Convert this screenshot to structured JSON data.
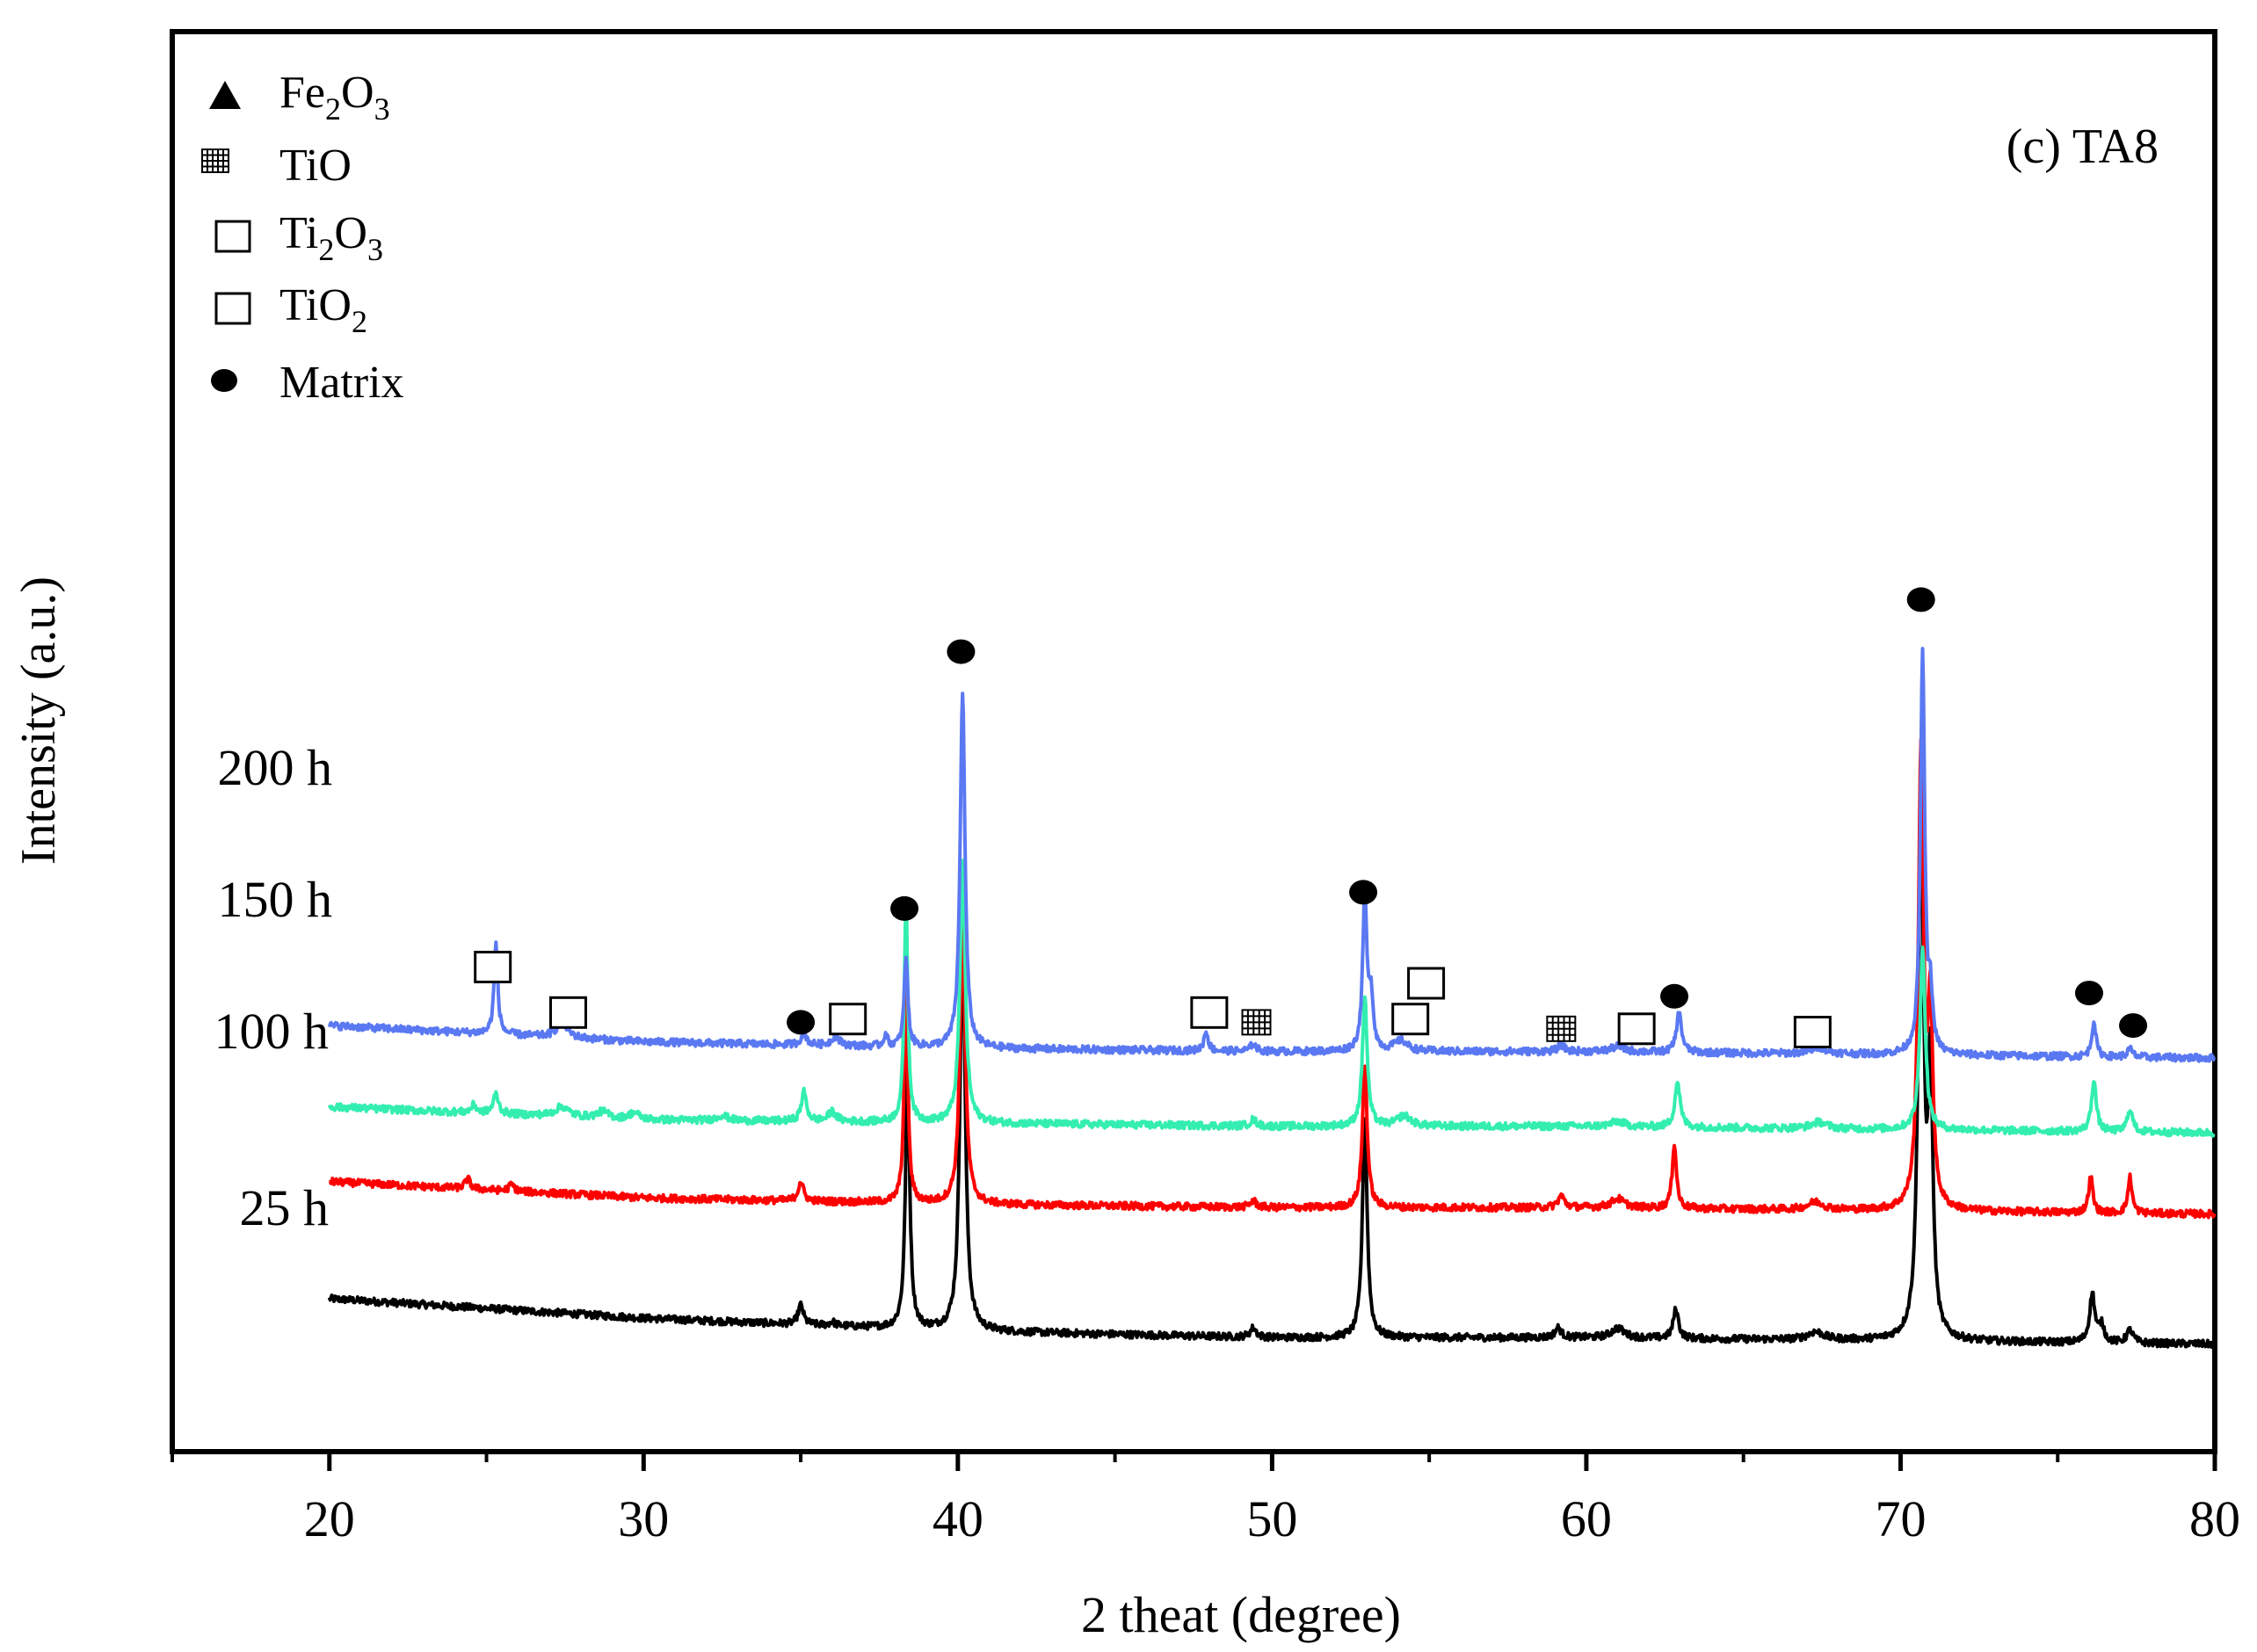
{
  "chart_data": {
    "type": "line",
    "panel_label": "(c) TA8",
    "xlabel": "2 theat (degree)",
    "ylabel": "Intensity (a.u.)",
    "xlim": [
      15,
      80
    ],
    "x_ticks": [
      20,
      30,
      40,
      50,
      60,
      70,
      80
    ],
    "x_tick_labels": [
      "20",
      "30",
      "40",
      "50",
      "60",
      "70",
      "80"
    ],
    "x_minor_ticks": [
      15,
      25,
      35,
      45,
      55,
      65,
      75
    ],
    "ylim": [
      0,
      100
    ],
    "y_ticks_shown": false,
    "legend": [
      {
        "marker": "triangle",
        "label_main": "Fe",
        "sub1": "2",
        "mid": "O",
        "sub2": "3"
      },
      {
        "marker": "grid-square",
        "label_main": "TiO",
        "sub1": "",
        "mid": "",
        "sub2": ""
      },
      {
        "marker": "open-square",
        "label_main": "Ti",
        "sub1": "2",
        "mid": "O",
        "sub2": "3"
      },
      {
        "marker": "open-square",
        "label_main": "TiO",
        "sub1": "2",
        "mid": "",
        "sub2": ""
      },
      {
        "marker": "filled-circle",
        "label_main": "Matrix",
        "sub1": "",
        "mid": "",
        "sub2": ""
      }
    ],
    "series": [
      {
        "name": "25 h",
        "color": "#000000",
        "baseline": [
          [
            20,
            16.5
          ],
          [
            30,
            13.5
          ],
          [
            40,
            11.5
          ],
          [
            50,
            10.5
          ],
          [
            60,
            10.5
          ],
          [
            70,
            10.0
          ],
          [
            80,
            9.5
          ]
        ],
        "peaks": [
          {
            "x": 35.0,
            "h": 3.0,
            "w": 0.1
          },
          {
            "x": 36.0,
            "h": 0.6,
            "w": 0.1
          },
          {
            "x": 38.4,
            "h": 40.0,
            "w": 0.08
          },
          {
            "x": 40.15,
            "h": 62.0,
            "w": 0.1
          },
          {
            "x": 49.4,
            "h": 1.4,
            "w": 0.12
          },
          {
            "x": 52.95,
            "h": 34.0,
            "w": 0.09
          },
          {
            "x": 59.1,
            "h": 1.5,
            "w": 0.12
          },
          {
            "x": 61.0,
            "h": 1.5,
            "w": 0.25
          },
          {
            "x": 62.85,
            "h": 4.5,
            "w": 0.1
          },
          {
            "x": 67.3,
            "h": 1.2,
            "w": 0.3
          },
          {
            "x": 70.65,
            "h": 82.0,
            "w": 0.1
          },
          {
            "x": 70.95,
            "h": 40.0,
            "w": 0.09
          },
          {
            "x": 76.1,
            "h": 7.5,
            "w": 0.1
          },
          {
            "x": 76.4,
            "h": 2.5,
            "w": 0.1
          },
          {
            "x": 77.3,
            "h": 2.0,
            "w": 0.12
          }
        ]
      },
      {
        "name": "100 h",
        "color": "#ff0000",
        "baseline": [
          [
            20,
            34.5
          ],
          [
            30,
            32.0
          ],
          [
            40,
            31.0
          ],
          [
            50,
            30.5
          ],
          [
            60,
            30.5
          ],
          [
            70,
            30.0
          ],
          [
            80,
            29.5
          ]
        ],
        "peaks": [
          {
            "x": 24.4,
            "h": 1.5,
            "w": 0.1
          },
          {
            "x": 25.8,
            "h": 1.0,
            "w": 0.1
          },
          {
            "x": 35.0,
            "h": 3.0,
            "w": 0.1
          },
          {
            "x": 38.35,
            "h": 34.0,
            "w": 0.07
          },
          {
            "x": 40.15,
            "h": 44.0,
            "w": 0.1
          },
          {
            "x": 49.4,
            "h": 1.0,
            "w": 0.12
          },
          {
            "x": 52.95,
            "h": 22.0,
            "w": 0.09
          },
          {
            "x": 59.2,
            "h": 1.8,
            "w": 0.12
          },
          {
            "x": 61.0,
            "h": 1.4,
            "w": 0.25
          },
          {
            "x": 62.8,
            "h": 10.0,
            "w": 0.08
          },
          {
            "x": 67.3,
            "h": 1.2,
            "w": 0.3
          },
          {
            "x": 70.65,
            "h": 70.0,
            "w": 0.1
          },
          {
            "x": 70.95,
            "h": 30.0,
            "w": 0.09
          },
          {
            "x": 76.05,
            "h": 5.5,
            "w": 0.08
          },
          {
            "x": 77.3,
            "h": 5.5,
            "w": 0.08
          }
        ]
      },
      {
        "name": "150 h",
        "color": "#33eeb0",
        "baseline": [
          [
            20,
            46.0
          ],
          [
            30,
            44.0
          ],
          [
            40,
            43.5
          ],
          [
            50,
            43.0
          ],
          [
            60,
            43.0
          ],
          [
            70,
            42.5
          ],
          [
            80,
            42.0
          ]
        ],
        "peaks": [
          {
            "x": 24.6,
            "h": 1.2,
            "w": 0.1
          },
          {
            "x": 25.3,
            "h": 3.0,
            "w": 0.1
          },
          {
            "x": 27.4,
            "h": 1.5,
            "w": 0.25
          },
          {
            "x": 28.7,
            "h": 1.0,
            "w": 0.2
          },
          {
            "x": 29.7,
            "h": 1.0,
            "w": 0.2
          },
          {
            "x": 32.5,
            "h": 0.8,
            "w": 0.2
          },
          {
            "x": 35.1,
            "h": 4.5,
            "w": 0.1
          },
          {
            "x": 36.0,
            "h": 1.5,
            "w": 0.15
          },
          {
            "x": 38.35,
            "h": 34.0,
            "w": 0.07
          },
          {
            "x": 40.15,
            "h": 40.0,
            "w": 0.1
          },
          {
            "x": 49.4,
            "h": 1.0,
            "w": 0.12
          },
          {
            "x": 52.95,
            "h": 20.0,
            "w": 0.09
          },
          {
            "x": 54.2,
            "h": 1.6,
            "w": 0.25
          },
          {
            "x": 61.0,
            "h": 0.8,
            "w": 0.25
          },
          {
            "x": 62.9,
            "h": 7.0,
            "w": 0.1
          },
          {
            "x": 67.4,
            "h": 1.0,
            "w": 0.3
          },
          {
            "x": 70.7,
            "h": 28.0,
            "w": 0.1
          },
          {
            "x": 76.15,
            "h": 8.0,
            "w": 0.09
          },
          {
            "x": 77.3,
            "h": 3.5,
            "w": 0.1
          }
        ]
      },
      {
        "name": "200 h",
        "color": "#5a78f2",
        "baseline": [
          [
            20,
            58.5
          ],
          [
            30,
            56.0
          ],
          [
            40,
            55.0
          ],
          [
            50,
            54.5
          ],
          [
            60,
            54.5
          ],
          [
            70,
            54.0
          ],
          [
            80,
            53.5
          ]
        ],
        "peaks": [
          {
            "x": 25.3,
            "h": 14.0,
            "w": 0.07
          },
          {
            "x": 27.4,
            "h": 2.5,
            "w": 0.2
          },
          {
            "x": 35.1,
            "h": 2.0,
            "w": 0.1
          },
          {
            "x": 36.1,
            "h": 1.4,
            "w": 0.15
          },
          {
            "x": 37.7,
            "h": 1.8,
            "w": 0.07
          },
          {
            "x": 38.35,
            "h": 14.0,
            "w": 0.07
          },
          {
            "x": 40.15,
            "h": 55.0,
            "w": 0.09
          },
          {
            "x": 47.9,
            "h": 3.0,
            "w": 0.08
          },
          {
            "x": 49.4,
            "h": 1.2,
            "w": 0.1
          },
          {
            "x": 52.95,
            "h": 24.0,
            "w": 0.08
          },
          {
            "x": 53.15,
            "h": 8.0,
            "w": 0.08
          },
          {
            "x": 54.1,
            "h": 1.6,
            "w": 0.25
          },
          {
            "x": 59.2,
            "h": 1.0,
            "w": 0.12
          },
          {
            "x": 61.0,
            "h": 0.8,
            "w": 0.25
          },
          {
            "x": 62.95,
            "h": 6.0,
            "w": 0.1
          },
          {
            "x": 67.4,
            "h": 1.0,
            "w": 0.3
          },
          {
            "x": 70.7,
            "h": 62.0,
            "w": 0.08
          },
          {
            "x": 70.95,
            "h": 8.0,
            "w": 0.08
          },
          {
            "x": 76.15,
            "h": 5.5,
            "w": 0.08
          },
          {
            "x": 77.3,
            "h": 1.2,
            "w": 0.1
          }
        ]
      }
    ],
    "series_labels": [
      {
        "text": "25 h",
        "series": 0
      },
      {
        "text": "100 h",
        "series": 1
      },
      {
        "text": "150 h",
        "series": 2
      },
      {
        "text": "200 h",
        "series": 3
      }
    ],
    "annotations": [
      {
        "marker": "open-square",
        "x": 25.2,
        "y": 67.5
      },
      {
        "marker": "open-square",
        "x": 27.6,
        "y": 60.5
      },
      {
        "marker": "filled-circle",
        "x": 35.0,
        "y": 59.0
      },
      {
        "marker": "open-square",
        "x": 36.5,
        "y": 59.5
      },
      {
        "marker": "filled-circle",
        "x": 38.3,
        "y": 76.5
      },
      {
        "marker": "filled-circle",
        "x": 40.1,
        "y": 116.0
      },
      {
        "marker": "open-square",
        "x": 48.0,
        "y": 60.5
      },
      {
        "marker": "grid-square",
        "x": 49.5,
        "y": 59.0
      },
      {
        "marker": "filled-circle",
        "x": 52.9,
        "y": 79.0
      },
      {
        "marker": "open-square",
        "x": 54.9,
        "y": 65.0
      },
      {
        "marker": "open-square",
        "x": 54.4,
        "y": 59.5
      },
      {
        "marker": "grid-square",
        "x": 59.2,
        "y": 58.0
      },
      {
        "marker": "open-square",
        "x": 61.6,
        "y": 58.0
      },
      {
        "marker": "filled-circle",
        "x": 62.8,
        "y": 63.0
      },
      {
        "marker": "open-square",
        "x": 67.2,
        "y": 57.5
      },
      {
        "marker": "filled-circle",
        "x": 70.65,
        "y": 124.0
      },
      {
        "marker": "filled-circle",
        "x": 76.0,
        "y": 63.5
      },
      {
        "marker": "filled-circle",
        "x": 77.4,
        "y": 58.5
      }
    ]
  }
}
